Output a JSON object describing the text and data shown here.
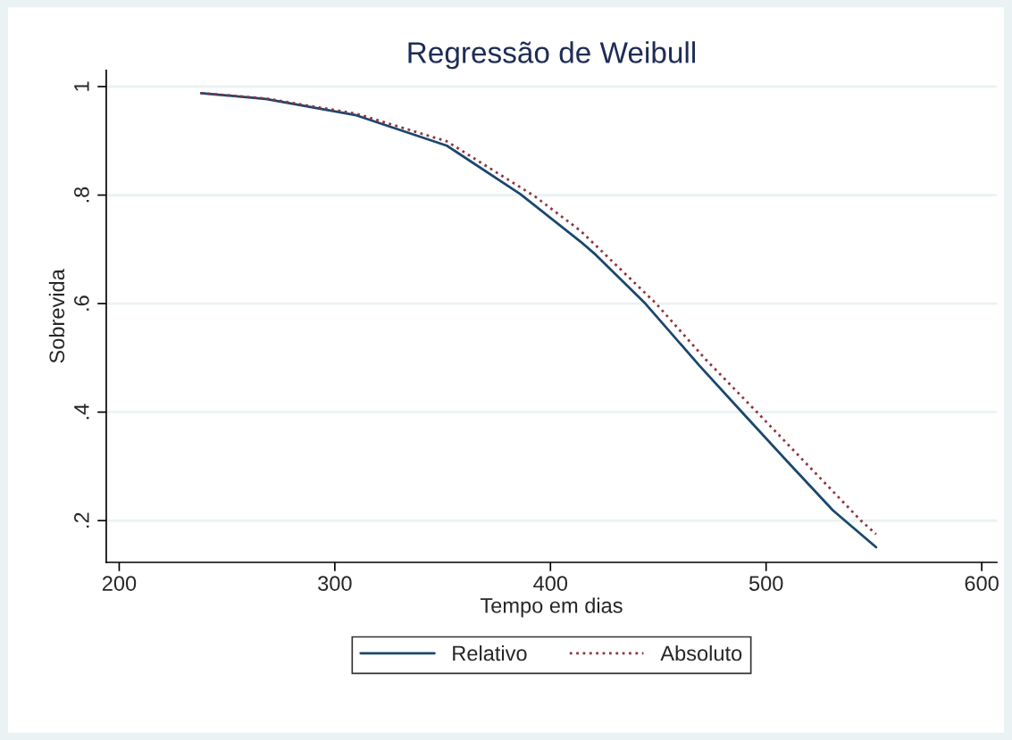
{
  "chart_data": {
    "type": "line",
    "title": "Regressão de Weibull",
    "xlabel": "Tempo em dias",
    "ylabel": "Sobrevida",
    "xlim": [
      194,
      607
    ],
    "xticks": [
      200,
      300,
      400,
      500,
      600
    ],
    "ylim": [
      0.123,
      1.03
    ],
    "yticks": [
      {
        "value": 0.2,
        "label": ".2"
      },
      {
        "value": 0.4,
        "label": ".4"
      },
      {
        "value": 0.6,
        "label": ".6"
      },
      {
        "value": 0.8,
        "label": ".8"
      },
      {
        "value": 1,
        "label": "1"
      }
    ],
    "grid": "y",
    "legend": "bottom",
    "series": [
      {
        "name": "Relativo",
        "color": "#1a476f",
        "line_style": "solid",
        "x": [
          238,
          268,
          310,
          352,
          386,
          414,
          421,
          444,
          469,
          489,
          511,
          531,
          551
        ],
        "values": [
          0.988,
          0.977,
          0.947,
          0.891,
          0.802,
          0.714,
          0.69,
          0.6,
          0.486,
          0.399,
          0.304,
          0.219,
          0.151
        ]
      },
      {
        "name": "Absoluto",
        "color": "#90353b",
        "line_style": "dotted",
        "x": [
          238,
          268,
          310,
          352,
          393,
          414,
          449,
          472,
          496,
          544,
          551
        ],
        "values": [
          0.988,
          0.978,
          0.95,
          0.899,
          0.797,
          0.734,
          0.6,
          0.497,
          0.399,
          0.2,
          0.175
        ]
      }
    ]
  }
}
